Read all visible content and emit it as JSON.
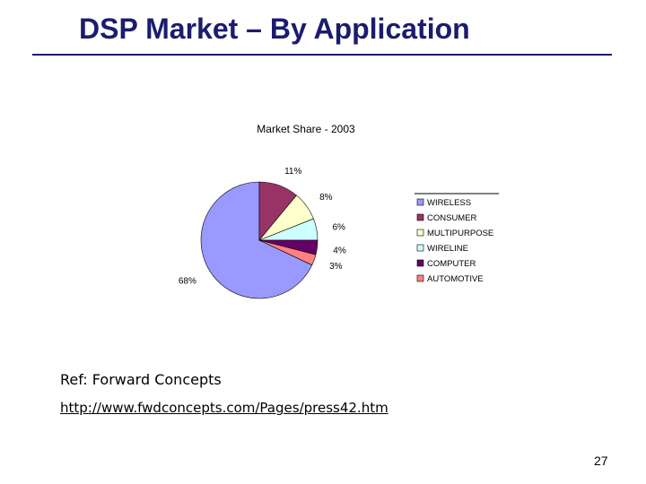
{
  "slide": {
    "title": "DSP Market – By Application",
    "reference_label": "Ref: Forward Concepts",
    "reference_url": "http://www.fwdconcepts.com/Pages/press42.htm",
    "page_number": "27"
  },
  "chart_data": {
    "type": "pie",
    "title": "Market Share - 2003",
    "legend_position": "right",
    "slices": [
      {
        "label": "WIRELESS",
        "value": 68,
        "value_label": "68%",
        "color": "#9999ff"
      },
      {
        "label": "CONSUMER",
        "value": 11,
        "value_label": "11%",
        "color": "#993366"
      },
      {
        "label": "MULTIPURPOSE",
        "value": 8,
        "value_label": "8%",
        "color": "#ffffcc"
      },
      {
        "label": "WIRELINE",
        "value": 6,
        "value_label": "6%",
        "color": "#ccffff"
      },
      {
        "label": "COMPUTER",
        "value": 4,
        "value_label": "4%",
        "color": "#660066"
      },
      {
        "label": "AUTOMOTIVE",
        "value": 3,
        "value_label": "3%",
        "color": "#ff8080"
      }
    ]
  }
}
